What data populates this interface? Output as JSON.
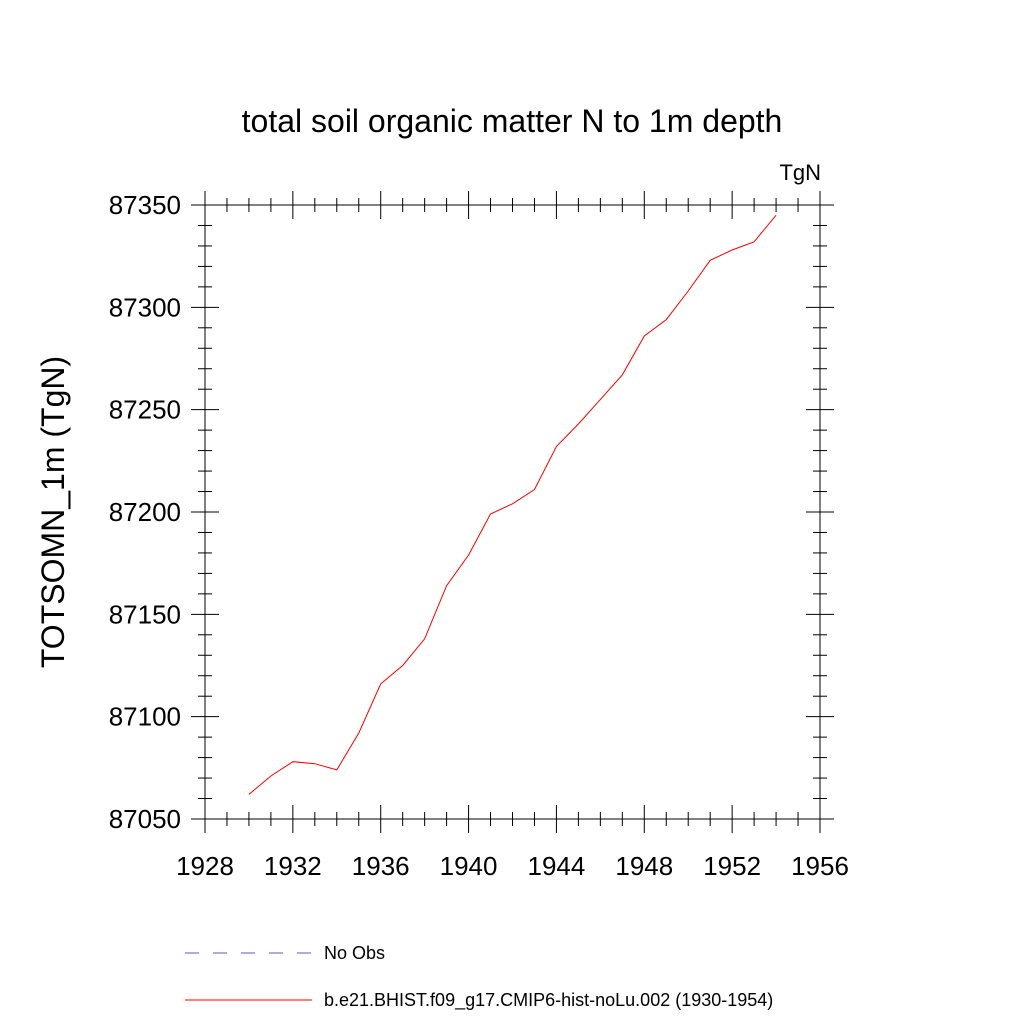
{
  "chart_data": {
    "type": "line",
    "title": "total soil organic matter N to 1m depth",
    "units": "TgN",
    "ylabel": "TOTSOMN_1m  (TgN)",
    "xlabel": "",
    "xlim": [
      1928,
      1956
    ],
    "ylim": [
      87050,
      87350
    ],
    "x_ticks": [
      1928,
      1932,
      1936,
      1940,
      1944,
      1948,
      1952,
      1956
    ],
    "y_ticks": [
      87050,
      87100,
      87150,
      87200,
      87250,
      87300,
      87350
    ],
    "x_ticks_labels": [
      "1928",
      "1932",
      "1936",
      "1940",
      "1944",
      "1948",
      "1952",
      "1956"
    ],
    "y_ticks_labels": [
      "87050",
      "87100",
      "87150",
      "87200",
      "87250",
      "87300",
      "87350"
    ],
    "grid": false,
    "legend_position": "bottom",
    "series": [
      {
        "name": "b.e21.BHIST.f09_g17.CMIP6-hist-noLu.002 (1930-1954)",
        "color": "#ff0000",
        "style": "solid",
        "x": [
          1930,
          1931,
          1932,
          1933,
          1934,
          1935,
          1936,
          1937,
          1938,
          1939,
          1940,
          1941,
          1942,
          1943,
          1944,
          1945,
          1946,
          1947,
          1948,
          1949,
          1950,
          1951,
          1952,
          1953,
          1954
        ],
        "y": [
          87062,
          87071,
          87078,
          87077,
          87074,
          87092,
          87116,
          87125,
          87138,
          87164,
          87179,
          87199,
          87204,
          87211,
          87232,
          87243,
          87255,
          87267,
          87286,
          87294,
          87308,
          87323,
          87328,
          87332,
          87345
        ]
      }
    ],
    "legend": [
      {
        "label": "No Obs",
        "color": "#5b5bb8",
        "style": "dashed"
      },
      {
        "label": "b.e21.BHIST.f09_g17.CMIP6-hist-noLu.002 (1930-1954)",
        "color": "#ff0000",
        "style": "solid"
      }
    ]
  }
}
